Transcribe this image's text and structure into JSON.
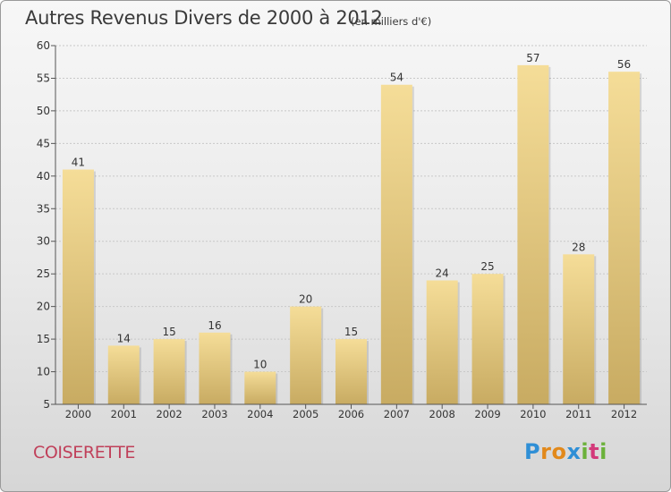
{
  "title": "Autres Revenus Divers de 2000 à 2012",
  "subtitle": "(en milliers d'€)",
  "commune": "COISERETTE",
  "logo": {
    "letters": [
      "P",
      "r",
      "o",
      "x",
      "i",
      "t",
      "i"
    ],
    "colors": [
      "#2f8fd6",
      "#e2891b",
      "#e2891b",
      "#2f8fd6",
      "#6bb13a",
      "#d33a7a",
      "#6bb13a"
    ]
  },
  "colors": {
    "bar_light": "#f5dd98",
    "bar_dark": "#c8ab62",
    "axis": "#555555",
    "grid": "#c8c8c8",
    "text": "#333333"
  },
  "chart_data": {
    "type": "bar",
    "categories": [
      "2000",
      "2001",
      "2002",
      "2003",
      "2004",
      "2005",
      "2006",
      "2007",
      "2008",
      "2009",
      "2010",
      "2011",
      "2012"
    ],
    "values": [
      41,
      14,
      15,
      16,
      10,
      20,
      15,
      54,
      24,
      25,
      57,
      28,
      56
    ],
    "ylim": [
      5,
      60
    ],
    "yticks": [
      5,
      10,
      15,
      20,
      25,
      30,
      35,
      40,
      45,
      50,
      55,
      60
    ],
    "grid": "horizontal dashed",
    "title": "Autres Revenus Divers de 2000 à 2012",
    "subtitle": "(en milliers d'€)"
  }
}
